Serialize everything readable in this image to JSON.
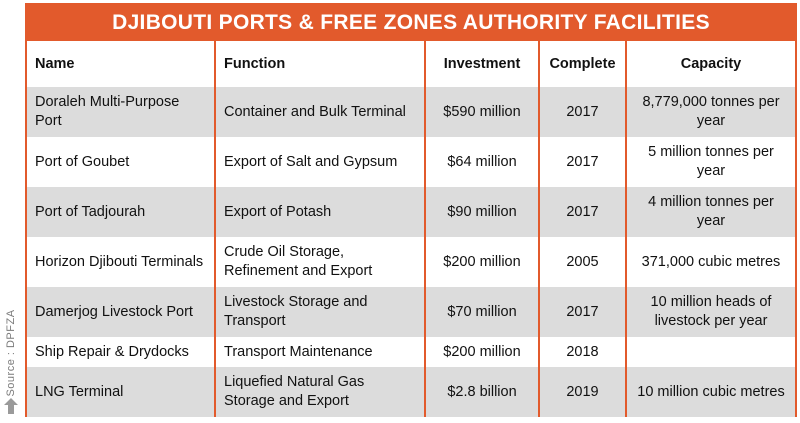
{
  "title": "DJIBOUTI PORTS & FREE ZONES AUTHORITY FACILITIES",
  "source": "Source : DPFZA",
  "accent_color": "#e25a2c",
  "columns": {
    "name": "Name",
    "function": "Function",
    "investment": "Investment",
    "complete": "Complete",
    "capacity": "Capacity"
  },
  "rows": [
    {
      "name": "Doraleh Multi-Purpose Port",
      "function": "Container and Bulk Terminal",
      "investment": "$590 million",
      "complete": "2017",
      "capacity": "8,779,000 tonnes per year"
    },
    {
      "name": "Port of Goubet",
      "function": "Export of Salt and Gypsum",
      "investment": "$64 million",
      "complete": "2017",
      "capacity": "5 million tonnes per year"
    },
    {
      "name": "Port of Tadjourah",
      "function": "Export of Potash",
      "investment": "$90 million",
      "complete": "2017",
      "capacity": "4 million tonnes per year"
    },
    {
      "name": "Horizon Djibouti Terminals",
      "function": "Crude Oil Storage, Refinement and Export",
      "investment": "$200 million",
      "complete": "2005",
      "capacity": "371,000 cubic metres"
    },
    {
      "name": "Damerjog Livestock Port",
      "function": "Livestock Storage and Transport",
      "investment": "$70 million",
      "complete": "2017",
      "capacity": "10 million heads of livestock per year"
    },
    {
      "name": "Ship Repair & Drydocks",
      "function": "Transport Maintenance",
      "investment": "$200 million",
      "complete": "2018",
      "capacity": ""
    },
    {
      "name": "LNG Terminal",
      "function": "Liquefied Natural Gas Storage and Export",
      "investment": "$2.8 billion",
      "complete": "2019",
      "capacity": "10 million cubic metres"
    }
  ]
}
